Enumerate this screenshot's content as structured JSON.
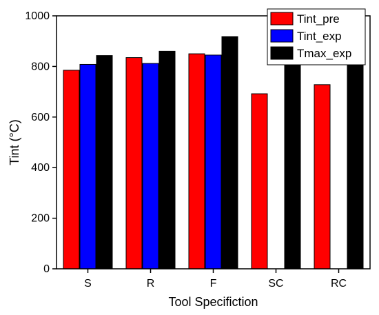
{
  "chart_data": {
    "type": "bar",
    "categories": [
      "S",
      "R",
      "F",
      "SC",
      "RC"
    ],
    "series": [
      {
        "name": "Tint_pre",
        "color": "#ff0000",
        "values": [
          785,
          835,
          850,
          692,
          728
        ]
      },
      {
        "name": "Tint_exp",
        "color": "#0000ff",
        "values": [
          808,
          812,
          845,
          null,
          null
        ]
      },
      {
        "name": "Tmax_exp",
        "color": "#000000",
        "values": [
          843,
          860,
          918,
          812,
          822
        ]
      }
    ],
    "xlabel": "Tool Specifiction",
    "ylabel": "Tint (°C)",
    "ylim": [
      0,
      1000
    ],
    "yticks": [
      0,
      200,
      400,
      600,
      800,
      1000
    ],
    "legend_position": "top-right"
  }
}
